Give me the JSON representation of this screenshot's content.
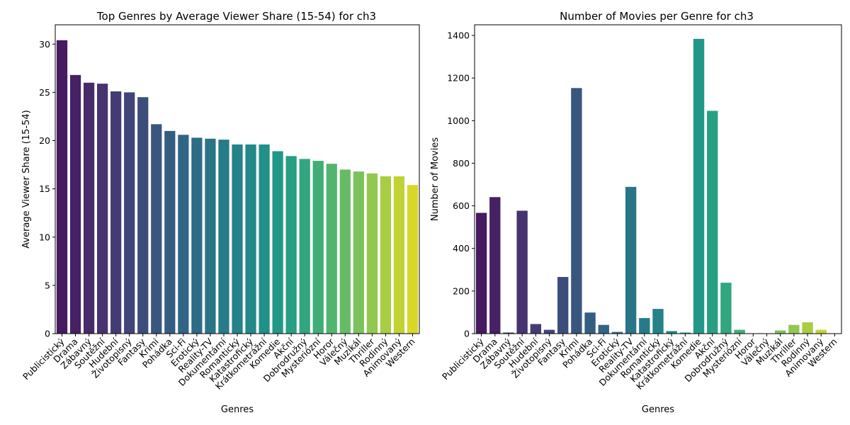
{
  "chart_data": [
    {
      "type": "bar",
      "title": "Top Genres by Average Viewer Share (15-54) for ch3",
      "xlabel": "Genres",
      "ylabel": "Average Viewer Share (15-54)",
      "ylim": [
        0,
        32
      ],
      "yticks": [
        0,
        5,
        10,
        15,
        20,
        25,
        30
      ],
      "grid": false,
      "categories": [
        "Publicistický",
        "Drama",
        "Zábavný",
        "Soutěžní",
        "Hudební",
        "Životopisný",
        "Fantasy",
        "Krimi",
        "Pohádka",
        "Sci-Fi",
        "Erotický",
        "Reality-TV",
        "Dokumentární",
        "Romantický",
        "Katastrofický",
        "Krátkometrážní",
        "Komedie",
        "Akční",
        "Dobrodružný",
        "Mysteriózní",
        "Horor",
        "Válečný",
        "Muzikál",
        "Thriller",
        "Rodinný",
        "Animovaný",
        "Western"
      ],
      "values": [
        30.4,
        26.8,
        26.0,
        25.9,
        25.1,
        25.0,
        24.5,
        21.7,
        21.0,
        20.6,
        20.3,
        20.2,
        20.1,
        19.6,
        19.6,
        19.6,
        18.9,
        18.4,
        18.1,
        17.9,
        17.6,
        17.0,
        16.8,
        16.6,
        16.3,
        16.3,
        15.4
      ],
      "colors": [
        "#461a5e",
        "#462163",
        "#472a6a",
        "#46336f",
        "#433c74",
        "#404579",
        "#3d4d7b",
        "#39567f",
        "#345d82",
        "#306585",
        "#2d6c86",
        "#2a7487",
        "#277b88",
        "#248288",
        "#228988",
        "#209088",
        "#219787",
        "#279f82",
        "#32a67e",
        "#40ad77",
        "#52b56f",
        "#66bc66",
        "#7bc25c",
        "#92c84f",
        "#a9cd43",
        "#c1d234",
        "#d9d62a"
      ]
    },
    {
      "type": "bar",
      "title": "Number of Movies per Genre for ch3",
      "xlabel": "Genres",
      "ylabel": "Number of Movies",
      "ylim": [
        0,
        1450
      ],
      "yticks": [
        0,
        200,
        400,
        600,
        800,
        1000,
        1200,
        1400
      ],
      "grid": false,
      "categories": [
        "Publicistický",
        "Drama",
        "Zábavný",
        "Soutěžní",
        "Hudební",
        "Životopisný",
        "Fantasy",
        "Krimi",
        "Pohádka",
        "Sci-Fi",
        "Erotický",
        "Reality-TV",
        "Dokumentární",
        "Romantický",
        "Katastrofický",
        "Krátkometrážní",
        "Komedie",
        "Akční",
        "Dobrodružný",
        "Mysteriózní",
        "Horor",
        "Válečný",
        "Muzikál",
        "Thriller",
        "Rodinný",
        "Animovaný",
        "Western"
      ],
      "values": [
        567,
        641,
        5,
        577,
        45,
        18,
        266,
        1153,
        99,
        41,
        8,
        689,
        73,
        116,
        12,
        5,
        1384,
        1046,
        239,
        18,
        1,
        1,
        15,
        41,
        53,
        18,
        1
      ],
      "colors": [
        "#461a5e",
        "#462163",
        "#472a6a",
        "#46336f",
        "#433c74",
        "#404579",
        "#3d4d7b",
        "#39567f",
        "#345d82",
        "#306585",
        "#2d6c86",
        "#2a7487",
        "#277b88",
        "#248288",
        "#228988",
        "#209088",
        "#219787",
        "#279f82",
        "#32a67e",
        "#40ad77",
        "#52b56f",
        "#66bc66",
        "#7bc25c",
        "#92c84f",
        "#a9cd43",
        "#c1d234",
        "#d9d62a"
      ]
    }
  ]
}
